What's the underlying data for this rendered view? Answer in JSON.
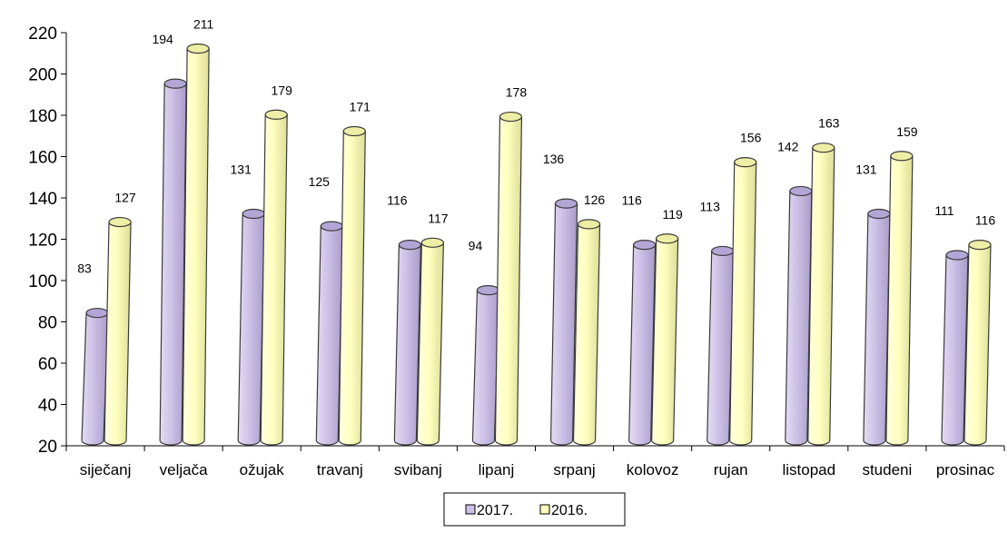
{
  "chart_data": {
    "type": "bar",
    "title": "",
    "xlabel": "",
    "ylabel": "",
    "ylim": [
      20,
      220
    ],
    "yticks": [
      20,
      40,
      60,
      80,
      100,
      120,
      140,
      160,
      180,
      200,
      220
    ],
    "categories": [
      "siječanj",
      "veljača",
      "ožujak",
      "travanj",
      "svibanj",
      "lipanj",
      "srpanj",
      "kolovoz",
      "rujan",
      "listopad",
      "studeni",
      "prosinac"
    ],
    "series": [
      {
        "name": "2017.",
        "color": "#ccc0e6",
        "values": [
          83,
          194,
          131,
          125,
          116,
          94,
          136,
          116,
          113,
          142,
          131,
          111
        ]
      },
      {
        "name": "2016.",
        "color": "#ffffc0",
        "values": [
          127,
          211,
          179,
          171,
          117,
          178,
          126,
          119,
          156,
          163,
          159,
          116
        ]
      }
    ],
    "legend_position": "bottom-center",
    "grid": false,
    "bar_style": "3d-cylinder"
  }
}
